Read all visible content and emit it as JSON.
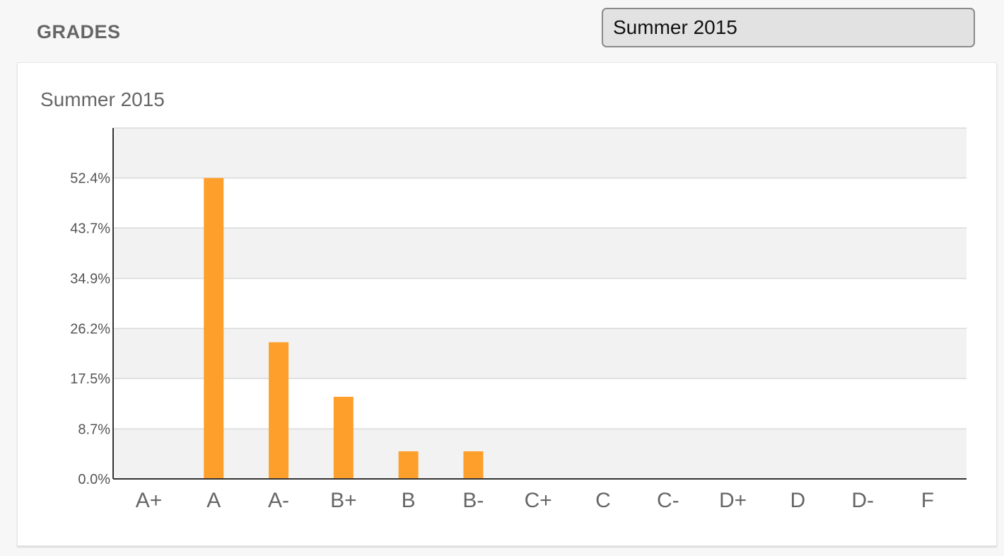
{
  "header": {
    "title": "GRADES"
  },
  "term_select": {
    "value": "Summer 2015"
  },
  "chart_data": {
    "type": "bar",
    "title": "Summer 2015",
    "categories": [
      "A+",
      "A",
      "A-",
      "B+",
      "B",
      "B-",
      "C+",
      "C",
      "C-",
      "D+",
      "D",
      "D-",
      "F"
    ],
    "values": [
      0.0,
      52.4,
      23.8,
      14.3,
      4.8,
      4.8,
      0.0,
      0.0,
      0.0,
      0.0,
      0.0,
      0.0,
      0.0
    ],
    "y_ticks": [
      "0.0%",
      "8.7%",
      "17.5%",
      "26.2%",
      "34.9%",
      "43.7%",
      "52.4%"
    ],
    "ylim": [
      0,
      61.1
    ],
    "xlabel": "",
    "ylabel": "",
    "bar_color": "#ff9f2b",
    "band_color": "#f2f2f2",
    "grid_color": "#d9d9d9",
    "axis_color": "#333333",
    "grid": true,
    "legend": "none"
  }
}
